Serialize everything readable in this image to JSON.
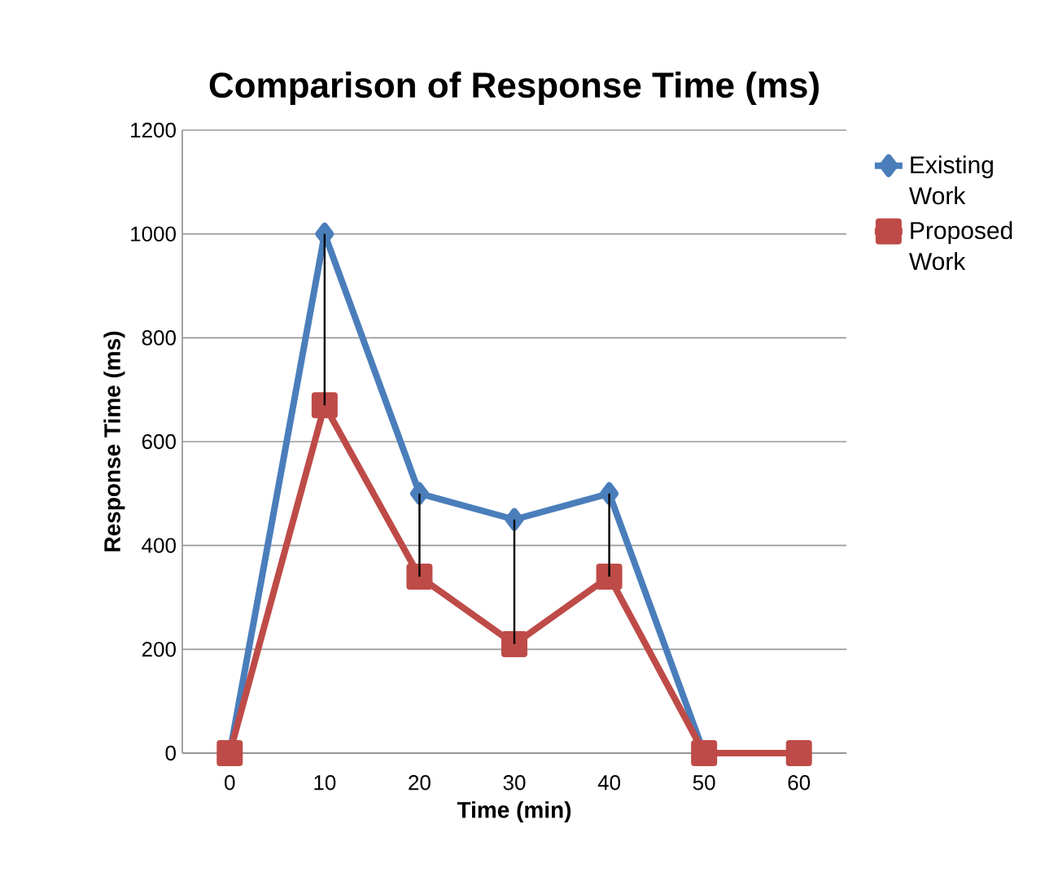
{
  "chart_data": {
    "type": "line",
    "title": "Comparison of Response Time (ms)",
    "xlabel": "Time (min)",
    "ylabel": "Response Time (ms)",
    "categories": [
      "0",
      "10",
      "20",
      "30",
      "40",
      "50",
      "60"
    ],
    "series": [
      {
        "name": "Existing Work",
        "color": "#4a7ebb",
        "marker": "diamond",
        "values": [
          0,
          1000,
          500,
          450,
          500,
          0,
          0
        ]
      },
      {
        "name": "Proposed Work",
        "color": "#be4b48",
        "marker": "square",
        "values": [
          0,
          670,
          340,
          210,
          340,
          0,
          0
        ],
        "errors": [
          null,
          [
            670,
            1000
          ],
          [
            340,
            500
          ],
          [
            210,
            450
          ],
          [
            340,
            500
          ],
          null,
          null
        ]
      }
    ],
    "ylim": [
      0,
      1200
    ],
    "yticks": [
      0,
      200,
      400,
      600,
      800,
      1000,
      1200
    ],
    "grid": "y",
    "legend": "right"
  }
}
